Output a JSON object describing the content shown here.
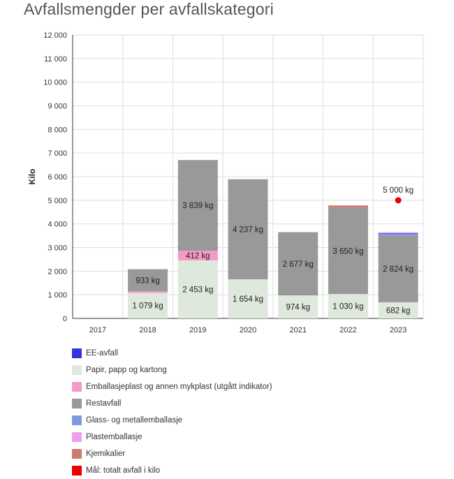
{
  "page": {
    "title": "Avfallsmengder per avfallskategori"
  },
  "chart_data": {
    "type": "bar",
    "stacked": true,
    "title": "Avfallsmengder per avfallskategori",
    "xlabel": "",
    "ylabel": "Kilo",
    "ylim": [
      0,
      12000
    ],
    "yticks": [
      0,
      1000,
      2000,
      3000,
      4000,
      5000,
      6000,
      7000,
      8000,
      9000,
      10000,
      11000,
      12000
    ],
    "ytick_labels": [
      "0",
      "1 000",
      "2 000",
      "3 000",
      "4 000",
      "5 000",
      "6 000",
      "7 000",
      "8 000",
      "9 000",
      "10 000",
      "11 000",
      "12 000"
    ],
    "categories": [
      "2017",
      "2018",
      "2019",
      "2020",
      "2021",
      "2022",
      "2023"
    ],
    "grid": true,
    "legend_position": "bottom",
    "series": [
      {
        "name": "Papir, papp og kartong",
        "color": "#dfe8dc",
        "values": [
          0,
          1079,
          2453,
          1654,
          974,
          1030,
          682
        ],
        "labels": [
          "",
          "1 079 kg",
          "2 453 kg",
          "1 654 kg",
          "974 kg",
          "1 030 kg",
          "682 kg"
        ]
      },
      {
        "name": "Emballasjeplast og annen mykplast (utgått indikator)",
        "color": "#f59ac5",
        "values": [
          0,
          70,
          412,
          0,
          0,
          0,
          0
        ],
        "labels": [
          "",
          "",
          "412 kg",
          "",
          "",
          "",
          ""
        ]
      },
      {
        "name": "Restavfall",
        "color": "#999999",
        "values": [
          0,
          933,
          3839,
          4237,
          2677,
          3650,
          2824
        ],
        "labels": [
          "",
          "933 kg",
          "3 839 kg",
          "4 237 kg",
          "2 677 kg",
          "3 650 kg",
          "2 824 kg"
        ]
      },
      {
        "name": "Glass- og metallemballasje",
        "color": "#7f9be0",
        "values": [
          0,
          0,
          0,
          0,
          0,
          0,
          80
        ],
        "labels": [
          "",
          "",
          "",
          "",
          "",
          "",
          ""
        ]
      },
      {
        "name": "EE-avfall",
        "color": "#3333dd",
        "values": [
          0,
          0,
          0,
          0,
          0,
          0,
          20
        ],
        "labels": [
          "",
          "",
          "",
          "",
          "",
          "",
          ""
        ]
      },
      {
        "name": "Plastemballasje",
        "color": "#f29cf0",
        "values": [
          0,
          0,
          0,
          0,
          0,
          0,
          40
        ],
        "labels": [
          "",
          "",
          "",
          "",
          "",
          "",
          ""
        ]
      },
      {
        "name": "Kjemikalier",
        "color": "#c87d72",
        "values": [
          0,
          0,
          0,
          0,
          0,
          100,
          0
        ],
        "labels": [
          "",
          "",
          "",
          "",
          "",
          "",
          ""
        ]
      }
    ],
    "target": {
      "name": "Mål: totalt avfall i kilo",
      "color": "#ee0000",
      "category": "2023",
      "value": 5000,
      "label": "5 000 kg"
    },
    "legend": [
      {
        "name": "EE-avfall",
        "color": "#3333dd"
      },
      {
        "name": "Papir, papp og kartong",
        "color": "#dfe8dc"
      },
      {
        "name": "Emballasjeplast og annen mykplast (utgått indikator)",
        "color": "#f59ac5"
      },
      {
        "name": "Restavfall",
        "color": "#999999"
      },
      {
        "name": "Glass- og metallemballasje",
        "color": "#7f9be0"
      },
      {
        "name": "Plastemballasje",
        "color": "#f29cf0"
      },
      {
        "name": "Kjemikalier",
        "color": "#c87d72"
      },
      {
        "name": "Mål: totalt avfall i kilo",
        "color": "#ee0000"
      }
    ]
  }
}
